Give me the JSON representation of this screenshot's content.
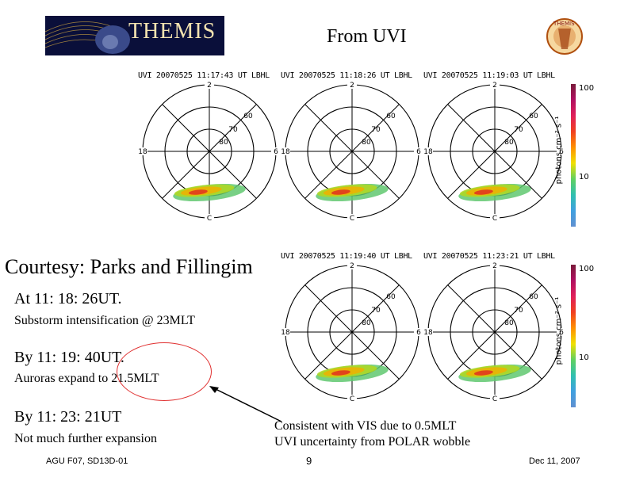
{
  "header": {
    "logo_text": "THEMIS",
    "title": "From UVI"
  },
  "panels": [
    {
      "title": "UVI 20070525 11:17:43 UT LBHL"
    },
    {
      "title": "UVI 20070525 11:18:26 UT LBHL"
    },
    {
      "title": "UVI 20070525 11:19:03 UT LBHL"
    },
    {
      "title": "UVI 20070525 11:19:40 UT LBHL"
    },
    {
      "title": "UVI 20070525 11:23:21 UT LBHL"
    }
  ],
  "polar_labels": {
    "top": "2",
    "left": "18",
    "right": "6",
    "bottom": "C",
    "lat60": "60",
    "lat70": "70",
    "lat80": "80"
  },
  "colorbar": {
    "max": "100",
    "mid": "10",
    "unit": "photons cm⁻² s⁻¹"
  },
  "text": {
    "courtesy": "Courtesy: Parks and Fillingim",
    "at_time": "At 11: 18: 26UT.",
    "substorm": "Substorm intensification @ 23MLT",
    "by_time1": "By 11: 19: 40UT.",
    "expand": "Auroras expand to 21.5MLT",
    "by_time2": "By 11: 23: 21UT",
    "not_much": "Not much further expansion",
    "consistent_line1": "Consistent with VIS due to 0.5MLT",
    "consistent_line2": "UVI uncertainty from POLAR wobble"
  },
  "footer": {
    "left": "AGU F07, SD13D-01",
    "page": "9",
    "date": "Dec 11, 2007"
  },
  "colors": {
    "logo_bg": "#0a0f3a",
    "highlight_circle": "#e03030",
    "arrow": "#000000"
  }
}
